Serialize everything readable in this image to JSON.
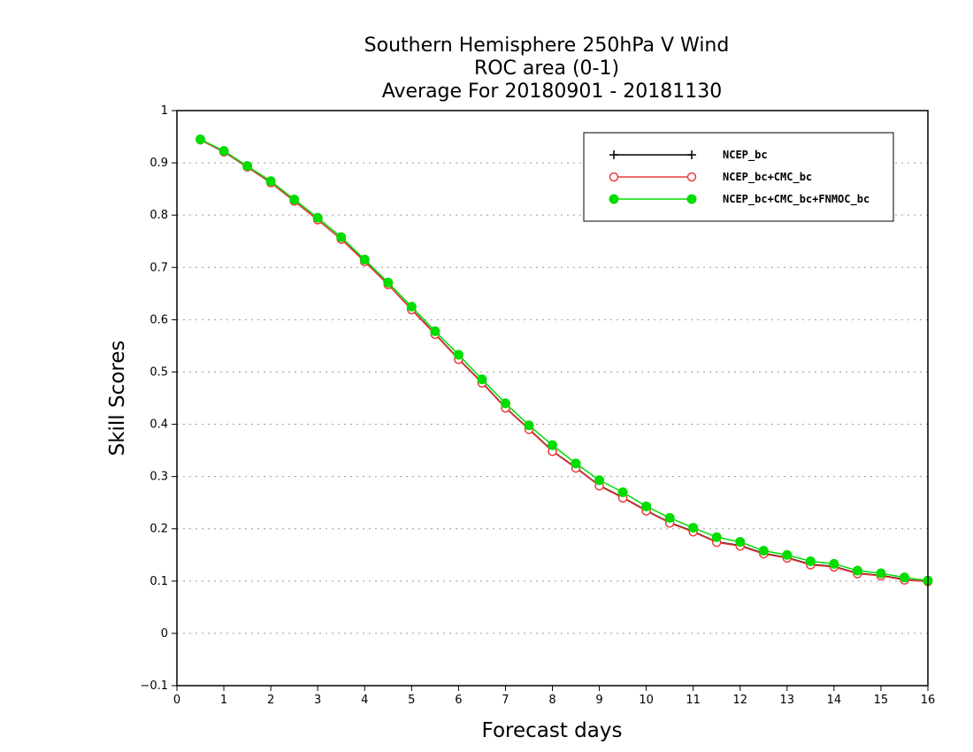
{
  "chart_data": {
    "type": "line",
    "title": [
      "Southern Hemisphere 250hPa V Wind",
      "ROC area (0-1)",
      "Average For 20180901 - 20181130"
    ],
    "xlabel": "Forecast days",
    "ylabel": "Skill Scores",
    "xlim": [
      0,
      16
    ],
    "ylim": [
      -0.1,
      1
    ],
    "xticks": [
      0,
      1,
      2,
      3,
      4,
      5,
      6,
      7,
      8,
      9,
      10,
      11,
      12,
      13,
      14,
      15,
      16
    ],
    "xtick_labels": [
      "0",
      "1",
      "2",
      "3",
      "4",
      "5",
      "6",
      "7",
      "8",
      "9",
      "10",
      "11",
      "12",
      "13",
      "14",
      "15",
      "16"
    ],
    "yticks": [
      -0.1,
      0,
      0.1,
      0.2,
      0.3,
      0.4,
      0.5,
      0.6,
      0.7,
      0.8,
      0.9,
      1
    ],
    "ytick_labels": [
      "−0.1",
      "0",
      "0.1",
      "0.2",
      "0.3",
      "0.4",
      "0.5",
      "0.6",
      "0.7",
      "0.8",
      "0.9",
      "1"
    ],
    "grid": "horizontal dotted",
    "legend_position": "top-right",
    "x": [
      0.5,
      1,
      1.5,
      2,
      2.5,
      3,
      3.5,
      4,
      4.5,
      5,
      5.5,
      6,
      6.5,
      7,
      7.5,
      8,
      8.5,
      9,
      9.5,
      10,
      10.5,
      11,
      11.5,
      12,
      12.5,
      13,
      13.5,
      14,
      14.5,
      15,
      15.5,
      16
    ],
    "series": [
      {
        "name": "NCEP_bc",
        "color": "#000000",
        "marker": "plus",
        "values": [
          0.944,
          0.921,
          0.892,
          0.862,
          0.827,
          0.791,
          0.754,
          0.712,
          0.667,
          0.62,
          0.573,
          0.525,
          0.48,
          0.432,
          0.391,
          0.349,
          0.317,
          0.283,
          0.26,
          0.235,
          0.212,
          0.195,
          0.175,
          0.168,
          0.153,
          0.145,
          0.132,
          0.128,
          0.115,
          0.111,
          0.103,
          0.099
        ]
      },
      {
        "name": "NCEP_bc+CMC_bc",
        "color": "#ee3b3b",
        "marker": "open-circle",
        "values": [
          0.944,
          0.921,
          0.892,
          0.862,
          0.827,
          0.791,
          0.754,
          0.711,
          0.667,
          0.619,
          0.572,
          0.524,
          0.479,
          0.431,
          0.39,
          0.348,
          0.316,
          0.282,
          0.259,
          0.234,
          0.211,
          0.194,
          0.174,
          0.167,
          0.152,
          0.144,
          0.131,
          0.127,
          0.114,
          0.11,
          0.102,
          0.099
        ]
      },
      {
        "name": "NCEP_bc+CMC_bc+FNMOC_bc",
        "color": "#00dd00",
        "marker": "filled-circle",
        "values": [
          0.945,
          0.923,
          0.894,
          0.865,
          0.83,
          0.795,
          0.758,
          0.715,
          0.671,
          0.625,
          0.578,
          0.533,
          0.486,
          0.44,
          0.398,
          0.36,
          0.325,
          0.293,
          0.27,
          0.243,
          0.221,
          0.202,
          0.184,
          0.175,
          0.158,
          0.15,
          0.138,
          0.133,
          0.12,
          0.115,
          0.107,
          0.101
        ]
      }
    ]
  }
}
